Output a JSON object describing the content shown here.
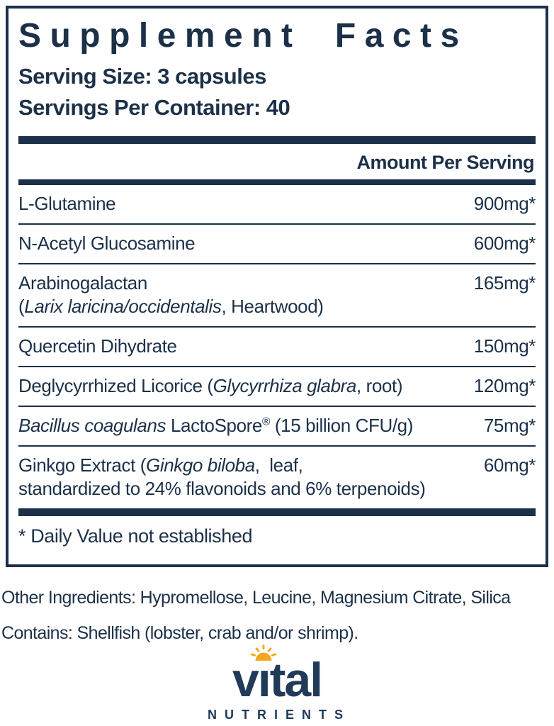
{
  "panel": {
    "title": "Supplement Facts",
    "serving_size": "Serving Size: 3 capsules",
    "servings_per_container": "Servings Per Container: 40",
    "amount_header": "Amount Per Serving",
    "footnote": "* Daily Value not established"
  },
  "table": {
    "rows": [
      {
        "name": [
          {
            "t": "L-Glutamine",
            "i": false
          }
        ],
        "amount": "900mg*"
      },
      {
        "name": [
          {
            "t": "N-Acetyl Glucosamine",
            "i": false
          }
        ],
        "amount": "600mg*"
      },
      {
        "name": [
          {
            "t": "Arabinogalactan",
            "i": false
          }
        ],
        "line2": [
          {
            "t": "(",
            "i": false
          },
          {
            "t": "Larix laricina/occidentalis",
            "i": true
          },
          {
            "t": ", Heartwood)",
            "i": false
          }
        ],
        "amount": "165mg*"
      },
      {
        "name": [
          {
            "t": "Quercetin Dihydrate",
            "i": false
          }
        ],
        "amount": "150mg*"
      },
      {
        "name": [
          {
            "t": "Deglycyrrhized Licorice (",
            "i": false
          },
          {
            "t": "Glycyrrhiza glabra",
            "i": true
          },
          {
            "t": ", root)",
            "i": false
          }
        ],
        "amount": "120mg*"
      },
      {
        "name": [
          {
            "t": "Bacillus coagulans",
            "i": true
          },
          {
            "t": " LactoSpore",
            "i": false
          },
          {
            "t": "®",
            "i": false,
            "sup": true
          },
          {
            "t": " (15 billion CFU/g)",
            "i": false
          }
        ],
        "amount": "75mg*"
      },
      {
        "name": [
          {
            "t": "Ginkgo Extract (",
            "i": false
          },
          {
            "t": "Ginkgo biloba",
            "i": true
          },
          {
            "t": ",  leaf,",
            "i": false
          }
        ],
        "line2": [
          {
            "t": "standardized to 24% flavonoids and 6% terpenoids)",
            "i": false
          }
        ],
        "amount": "60mg*"
      }
    ]
  },
  "other_ingredients": "Other Ingredients: Hypromellose, Leucine, Magnesium Citrate, Silica",
  "contains": "Contains: Shellfish (lobster, crab and/or shrimp).",
  "logo": {
    "brand_left": "v",
    "brand_i": "ı",
    "brand_right": "tal",
    "subtext": "NUTRIENTS",
    "sun_icon": "half-sun-with-rays"
  },
  "colors": {
    "navy": "#1c3149",
    "logo_navy": "#203a58",
    "sun_gold": "#f2a81d"
  }
}
